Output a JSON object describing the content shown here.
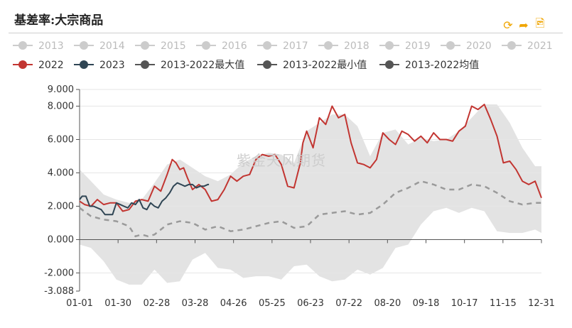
{
  "title": "基差率:大宗商品",
  "watermark": "紫金天风期货",
  "toolbox": [
    {
      "name": "restore-icon",
      "glyph": "⟳"
    },
    {
      "name": "share-icon",
      "glyph": "➦"
    },
    {
      "name": "save-image-icon",
      "glyph": "🖻"
    }
  ],
  "chart_data": {
    "type": "line",
    "legend": {
      "placement": "top",
      "items": [
        {
          "label": "2013",
          "color": "#cccccc",
          "active": false
        },
        {
          "label": "2014",
          "color": "#cccccc",
          "active": false
        },
        {
          "label": "2015",
          "color": "#cccccc",
          "active": false
        },
        {
          "label": "2016",
          "color": "#cccccc",
          "active": false
        },
        {
          "label": "2017",
          "color": "#cccccc",
          "active": false
        },
        {
          "label": "2018",
          "color": "#cccccc",
          "active": false
        },
        {
          "label": "2019",
          "color": "#cccccc",
          "active": false
        },
        {
          "label": "2020",
          "color": "#cccccc",
          "active": false
        },
        {
          "label": "2021",
          "color": "#cccccc",
          "active": false
        },
        {
          "label": "2022",
          "color": "#c23531",
          "active": true
        },
        {
          "label": "2023",
          "color": "#2f4554",
          "active": true
        },
        {
          "label": "2013-2022最大值",
          "color": "#555555",
          "active": true
        },
        {
          "label": "2013-2022最小值",
          "color": "#555555",
          "active": true
        },
        {
          "label": "2013-2022均值",
          "color": "#555555",
          "active": true
        }
      ]
    },
    "x_ticks": [
      "01-01",
      "01-30",
      "02-28",
      "03-28",
      "04-26",
      "05-25",
      "06-23",
      "07-22",
      "08-20",
      "09-18",
      "10-17",
      "11-15",
      "12-31"
    ],
    "y_ticks": [
      "9.000",
      "8.000",
      "6.000",
      "4.000",
      "2.000",
      "0.000",
      "-2.000",
      "-3.088"
    ],
    "ylim": [
      -3.088,
      9.0
    ],
    "xlim_day": [
      1,
      365
    ],
    "grid": "horizontal",
    "series": [
      {
        "name": "2022",
        "color": "#c23531",
        "style": "solid",
        "x": [
          1,
          5,
          10,
          15,
          20,
          25,
          30,
          35,
          40,
          45,
          50,
          55,
          60,
          65,
          70,
          74,
          77,
          80,
          83,
          86,
          90,
          95,
          100,
          105,
          110,
          115,
          120,
          125,
          130,
          135,
          140,
          145,
          150,
          155,
          160,
          165,
          170,
          175,
          177,
          180,
          185,
          190,
          195,
          200,
          205,
          210,
          215,
          220,
          225,
          230,
          235,
          240,
          245,
          250,
          255,
          260,
          265,
          270,
          275,
          280,
          285,
          290,
          295,
          300,
          305,
          310,
          315,
          320,
          325,
          330,
          335,
          340,
          345,
          350,
          355,
          360,
          365
        ],
        "values": [
          2.3,
          2.1,
          2.0,
          2.4,
          2.1,
          2.2,
          2.2,
          1.7,
          1.8,
          2.3,
          2.4,
          2.3,
          3.2,
          2.9,
          3.9,
          4.8,
          4.6,
          4.2,
          4.3,
          3.7,
          3.0,
          3.3,
          3.0,
          2.3,
          2.4,
          3.0,
          3.8,
          3.5,
          3.8,
          3.9,
          4.8,
          5.1,
          5.0,
          5.1,
          4.5,
          3.2,
          3.1,
          4.6,
          5.8,
          6.5,
          5.5,
          7.3,
          6.9,
          8.0,
          7.3,
          7.5,
          5.8,
          4.6,
          4.5,
          4.3,
          4.8,
          6.4,
          6.0,
          5.7,
          6.5,
          6.3,
          5.9,
          6.2,
          5.8,
          6.4,
          6.0,
          6.0,
          5.9,
          6.5,
          6.8,
          8.0,
          7.8,
          8.1,
          7.2,
          6.2,
          4.6,
          4.7,
          4.2,
          3.5,
          3.3,
          3.5,
          2.5
        ]
      },
      {
        "name": "2023",
        "color": "#2f4554",
        "style": "solid",
        "x": [
          1,
          3,
          6,
          9,
          12,
          15,
          18,
          21,
          24,
          27,
          30,
          33,
          36,
          39,
          42,
          45,
          48,
          51,
          54,
          57,
          60,
          63,
          66,
          69,
          72,
          75,
          78,
          81,
          84,
          87,
          90,
          93,
          96,
          99,
          102,
          103
        ],
        "values": [
          2.4,
          2.6,
          2.6,
          2.0,
          2.0,
          1.9,
          1.8,
          1.5,
          1.5,
          1.5,
          2.2,
          2.1,
          2.0,
          1.9,
          2.2,
          2.1,
          2.4,
          1.9,
          1.8,
          2.2,
          2.0,
          1.9,
          2.3,
          2.5,
          2.8,
          3.2,
          3.4,
          3.3,
          3.2,
          3.3,
          3.3,
          3.1,
          3.2,
          3.2,
          3.3,
          3.3
        ]
      },
      {
        "name": "2013-2022最大值",
        "color": "#e3e3e3",
        "style": "band-upper",
        "x": [
          1,
          10,
          20,
          30,
          40,
          50,
          60,
          70,
          80,
          90,
          100,
          110,
          120,
          130,
          140,
          150,
          160,
          170,
          180,
          190,
          200,
          210,
          220,
          230,
          240,
          250,
          260,
          270,
          280,
          290,
          300,
          310,
          320,
          330,
          340,
          350,
          360,
          365
        ],
        "values": [
          4.2,
          3.5,
          2.7,
          2.4,
          2.2,
          2.4,
          3.4,
          4.5,
          4.8,
          4.3,
          3.8,
          3.5,
          3.9,
          4.6,
          5.0,
          5.2,
          5.1,
          4.6,
          6.5,
          7.0,
          7.5,
          7.5,
          6.8,
          5.0,
          6.4,
          6.6,
          5.7,
          6.1,
          5.9,
          6.0,
          6.5,
          7.3,
          8.1,
          8.1,
          7.0,
          5.5,
          4.4,
          4.4
        ]
      },
      {
        "name": "2013-2022最小值",
        "color": "#e3e3e3",
        "style": "band-lower",
        "x": [
          1,
          10,
          20,
          30,
          40,
          50,
          60,
          70,
          80,
          90,
          100,
          110,
          120,
          130,
          140,
          150,
          160,
          170,
          180,
          190,
          200,
          210,
          220,
          230,
          240,
          250,
          260,
          270,
          280,
          290,
          300,
          310,
          320,
          330,
          340,
          350,
          360,
          365
        ],
        "values": [
          -0.3,
          -0.5,
          -1.3,
          -2.4,
          -2.7,
          -2.7,
          -1.8,
          -2.6,
          -2.5,
          -1.2,
          -0.8,
          -1.7,
          -1.8,
          -2.3,
          -2.2,
          -2.2,
          -2.4,
          -1.6,
          -1.5,
          -2.2,
          -2.5,
          -2.4,
          -1.8,
          -2.1,
          -1.7,
          -0.5,
          -0.3,
          0.9,
          1.7,
          1.9,
          1.6,
          1.9,
          1.7,
          0.5,
          0.4,
          0.4,
          0.6,
          0.4
        ]
      },
      {
        "name": "2013-2022均值",
        "color": "#9a9a9a",
        "style": "dashed",
        "x": [
          1,
          10,
          20,
          30,
          40,
          45,
          50,
          55,
          60,
          70,
          80,
          90,
          100,
          110,
          120,
          130,
          140,
          150,
          160,
          170,
          180,
          190,
          200,
          210,
          220,
          230,
          240,
          250,
          260,
          270,
          280,
          290,
          300,
          310,
          320,
          330,
          340,
          350,
          360,
          365
        ],
        "values": [
          1.9,
          1.4,
          1.2,
          1.1,
          0.8,
          0.2,
          0.3,
          0.2,
          0.3,
          0.9,
          1.1,
          1.0,
          0.6,
          0.8,
          0.5,
          0.6,
          0.8,
          1.0,
          1.1,
          0.7,
          0.8,
          1.5,
          1.6,
          1.7,
          1.5,
          1.6,
          2.1,
          2.8,
          3.1,
          3.5,
          3.3,
          3.0,
          3.0,
          3.3,
          3.2,
          2.8,
          2.3,
          2.1,
          2.2,
          2.2
        ]
      }
    ]
  }
}
